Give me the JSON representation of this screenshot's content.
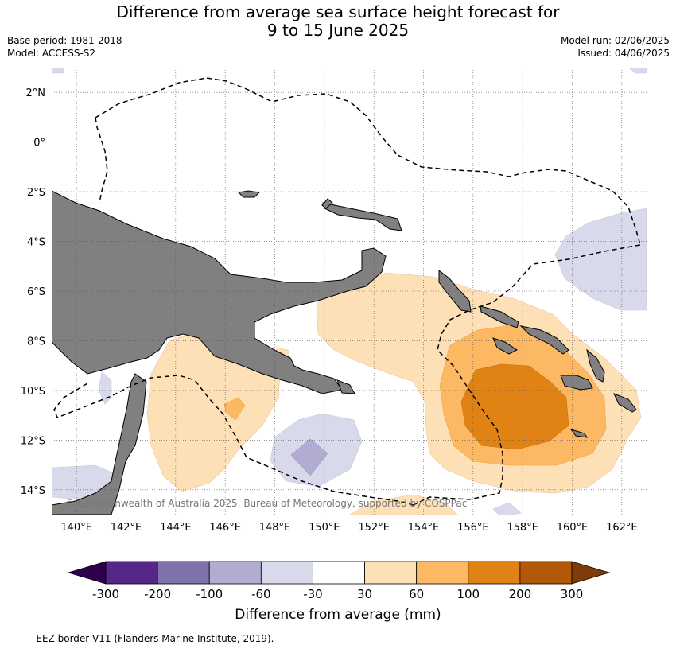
{
  "title": {
    "line1": "Difference from average sea surface height forecast for",
    "line2": "9 to 15 June 2025"
  },
  "meta_left": {
    "base_period": "Base period: 1981-2018",
    "model": "Model: ACCESS-S2"
  },
  "meta_right": {
    "model_run": "Model run: 02/06/2025",
    "issued": "Issued: 04/06/2025"
  },
  "map": {
    "lon_range": [
      139,
      163
    ],
    "lat_range": [
      -15,
      3
    ],
    "lon_ticks": [
      "140°E",
      "142°E",
      "144°E",
      "146°E",
      "148°E",
      "150°E",
      "152°E",
      "154°E",
      "156°E",
      "158°E",
      "160°E",
      "162°E"
    ],
    "lat_ticks": [
      "2°N",
      "0°",
      "2°S",
      "4°S",
      "6°S",
      "8°S",
      "10°S",
      "12°S",
      "14°S"
    ],
    "gridlines": true,
    "land_color": "#808080",
    "copyright": "© Commonwealth of Australia 2025, Bureau of Meteorology, supported by COSPPac"
  },
  "colorbar": {
    "labels": [
      "-300",
      "-200",
      "-100",
      "-60",
      "-30",
      "30",
      "60",
      "100",
      "200",
      "300"
    ],
    "colors": [
      "#2d004b",
      "#542788",
      "#8073ac",
      "#b2abd2",
      "#d8daeb",
      "#ffffff",
      "#fee0b6",
      "#fdb863",
      "#e08214",
      "#b35806",
      "#7f3b08"
    ],
    "title": "Difference from average (mm)"
  },
  "legend": {
    "eez_label": "--  --  -- EEZ border V11 (Flanders Marine Institute, 2019)."
  }
}
